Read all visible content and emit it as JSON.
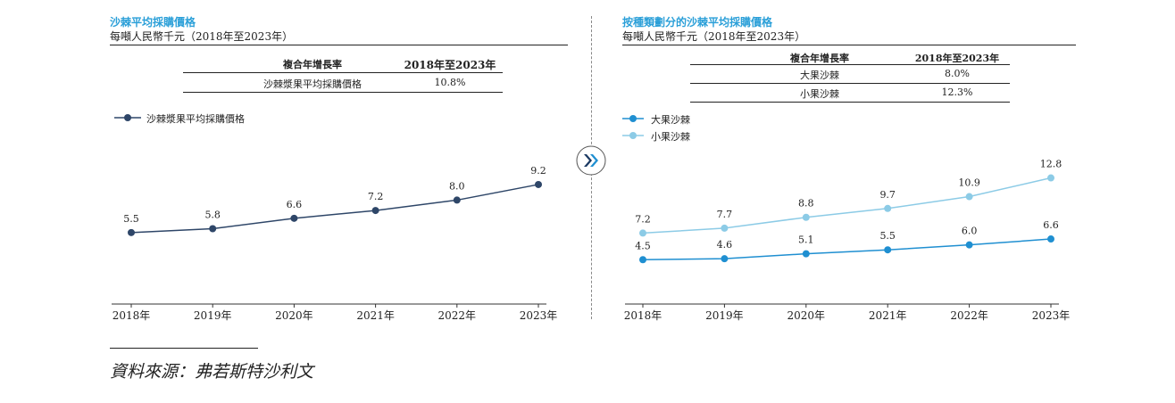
{
  "left": {
    "title": "沙棘平均採購價格",
    "subtitle": "每噸人民幣千元（2018年至2023年）",
    "cagr_table": {
      "header": [
        "複合年增長率",
        "2018年至2023年"
      ],
      "rows": [
        [
          "沙棘漿果平均採購價格",
          "10.8%"
        ]
      ]
    }
  },
  "right": {
    "title": "按種類劃分的沙棘平均採購價格",
    "subtitle": "每噸人民幣千元（2018年至2023年）",
    "cagr_table": {
      "header": [
        "複合年增長率",
        "2018年至2023年"
      ],
      "rows": [
        [
          "大果沙棘",
          "8.0%"
        ],
        [
          "小果沙棘",
          "12.3%"
        ]
      ]
    }
  },
  "chart_data": [
    {
      "type": "line",
      "x": [
        "2018年",
        "2019年",
        "2020年",
        "2021年",
        "2022年",
        "2023年"
      ],
      "series": [
        {
          "name": "沙棘漿果平均採購價格",
          "values": [
            5.5,
            5.8,
            6.6,
            7.2,
            8.0,
            9.2
          ],
          "color": "#2e4668"
        }
      ],
      "ylim": [
        0,
        14
      ],
      "grid": false,
      "legend": "top-left"
    },
    {
      "type": "line",
      "x": [
        "2018年",
        "2019年",
        "2020年",
        "2021年",
        "2022年",
        "2023年"
      ],
      "series": [
        {
          "name": "大果沙棘",
          "values": [
            4.5,
            4.6,
            5.1,
            5.5,
            6.0,
            6.6
          ],
          "color": "#1f8fd1"
        },
        {
          "name": "小果沙棘",
          "values": [
            7.2,
            7.7,
            8.8,
            9.7,
            10.9,
            12.8
          ],
          "color": "#8ccbe6"
        }
      ],
      "ylim": [
        0,
        19
      ],
      "grid": false,
      "legend": "top-left"
    }
  ],
  "source": "資料來源：弗若斯特沙利文",
  "colors": {
    "title": "#2a9fd8",
    "left_line": "#2e4668",
    "large_fruit": "#1f8fd1",
    "small_fruit": "#8ccbe6"
  },
  "icons": {
    "divider_arrow": "double-chevron-right-icon"
  }
}
